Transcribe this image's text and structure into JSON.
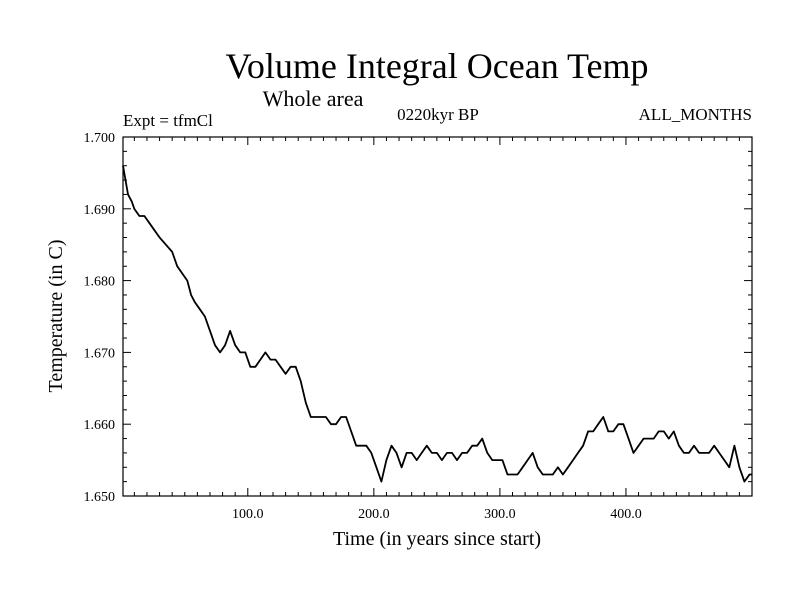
{
  "chart_data": {
    "type": "line",
    "title": "Volume Integral Ocean Temp",
    "subtitle": "Whole area",
    "annotations": {
      "left": "Expt = tfmCl",
      "center": "0220kyr BP",
      "right": "ALL_MONTHS"
    },
    "xlabel": "Time (in years since start)",
    "ylabel": "Temperature (in C)",
    "xlim": [
      1,
      500
    ],
    "ylim": [
      1.65,
      1.7
    ],
    "x_ticks": [
      100,
      200,
      300,
      400
    ],
    "x_tick_labels": [
      "100.0",
      "200.0",
      "300.0",
      "400.0"
    ],
    "y_ticks": [
      1.65,
      1.66,
      1.67,
      1.68,
      1.69,
      1.7
    ],
    "y_tick_labels": [
      "1.650",
      "1.660",
      "1.670",
      "1.680",
      "1.690",
      "1.700"
    ],
    "grid": false,
    "legend": "none",
    "line_color": "#000000",
    "series": [
      {
        "x": [
          1,
          3,
          5,
          8,
          10,
          14,
          18,
          22,
          26,
          30,
          35,
          40,
          44,
          48,
          52,
          55,
          58,
          62,
          66,
          70,
          74,
          78,
          82,
          86,
          90,
          94,
          98,
          102,
          106,
          110,
          114,
          118,
          122,
          126,
          130,
          134,
          138,
          142,
          146,
          150,
          154,
          158,
          162,
          166,
          170,
          174,
          178,
          182,
          186,
          190,
          194,
          198,
          202,
          206,
          210,
          214,
          218,
          222,
          226,
          230,
          234,
          238,
          242,
          246,
          250,
          254,
          258,
          262,
          266,
          270,
          274,
          278,
          282,
          286,
          290,
          294,
          298,
          302,
          306,
          310,
          314,
          318,
          322,
          326,
          330,
          334,
          338,
          342,
          346,
          350,
          354,
          358,
          362,
          366,
          370,
          374,
          378,
          382,
          386,
          390,
          394,
          398,
          402,
          406,
          410,
          414,
          418,
          422,
          426,
          430,
          434,
          438,
          442,
          446,
          450,
          454,
          458,
          462,
          466,
          470,
          474,
          478,
          482,
          486,
          490,
          494,
          498,
          500
        ],
        "y": [
          1.696,
          1.694,
          1.692,
          1.691,
          1.69,
          1.689,
          1.689,
          1.688,
          1.687,
          1.686,
          1.685,
          1.684,
          1.682,
          1.681,
          1.68,
          1.678,
          1.677,
          1.676,
          1.675,
          1.673,
          1.671,
          1.67,
          1.671,
          1.673,
          1.671,
          1.67,
          1.67,
          1.668,
          1.668,
          1.669,
          1.67,
          1.669,
          1.669,
          1.668,
          1.667,
          1.668,
          1.668,
          1.666,
          1.663,
          1.661,
          1.661,
          1.661,
          1.661,
          1.66,
          1.66,
          1.661,
          1.661,
          1.659,
          1.657,
          1.657,
          1.657,
          1.656,
          1.654,
          1.652,
          1.655,
          1.657,
          1.656,
          1.654,
          1.656,
          1.656,
          1.655,
          1.656,
          1.657,
          1.656,
          1.656,
          1.655,
          1.656,
          1.656,
          1.655,
          1.656,
          1.656,
          1.657,
          1.657,
          1.658,
          1.656,
          1.655,
          1.655,
          1.655,
          1.653,
          1.653,
          1.653,
          1.654,
          1.655,
          1.656,
          1.654,
          1.653,
          1.653,
          1.653,
          1.654,
          1.653,
          1.654,
          1.655,
          1.656,
          1.657,
          1.659,
          1.659,
          1.66,
          1.661,
          1.659,
          1.659,
          1.66,
          1.66,
          1.658,
          1.656,
          1.657,
          1.658,
          1.658,
          1.658,
          1.659,
          1.659,
          1.658,
          1.659,
          1.657,
          1.656,
          1.656,
          1.657,
          1.656,
          1.656,
          1.656,
          1.657,
          1.656,
          1.655,
          1.654,
          1.657,
          1.654,
          1.652,
          1.653,
          1.653
        ]
      }
    ]
  }
}
